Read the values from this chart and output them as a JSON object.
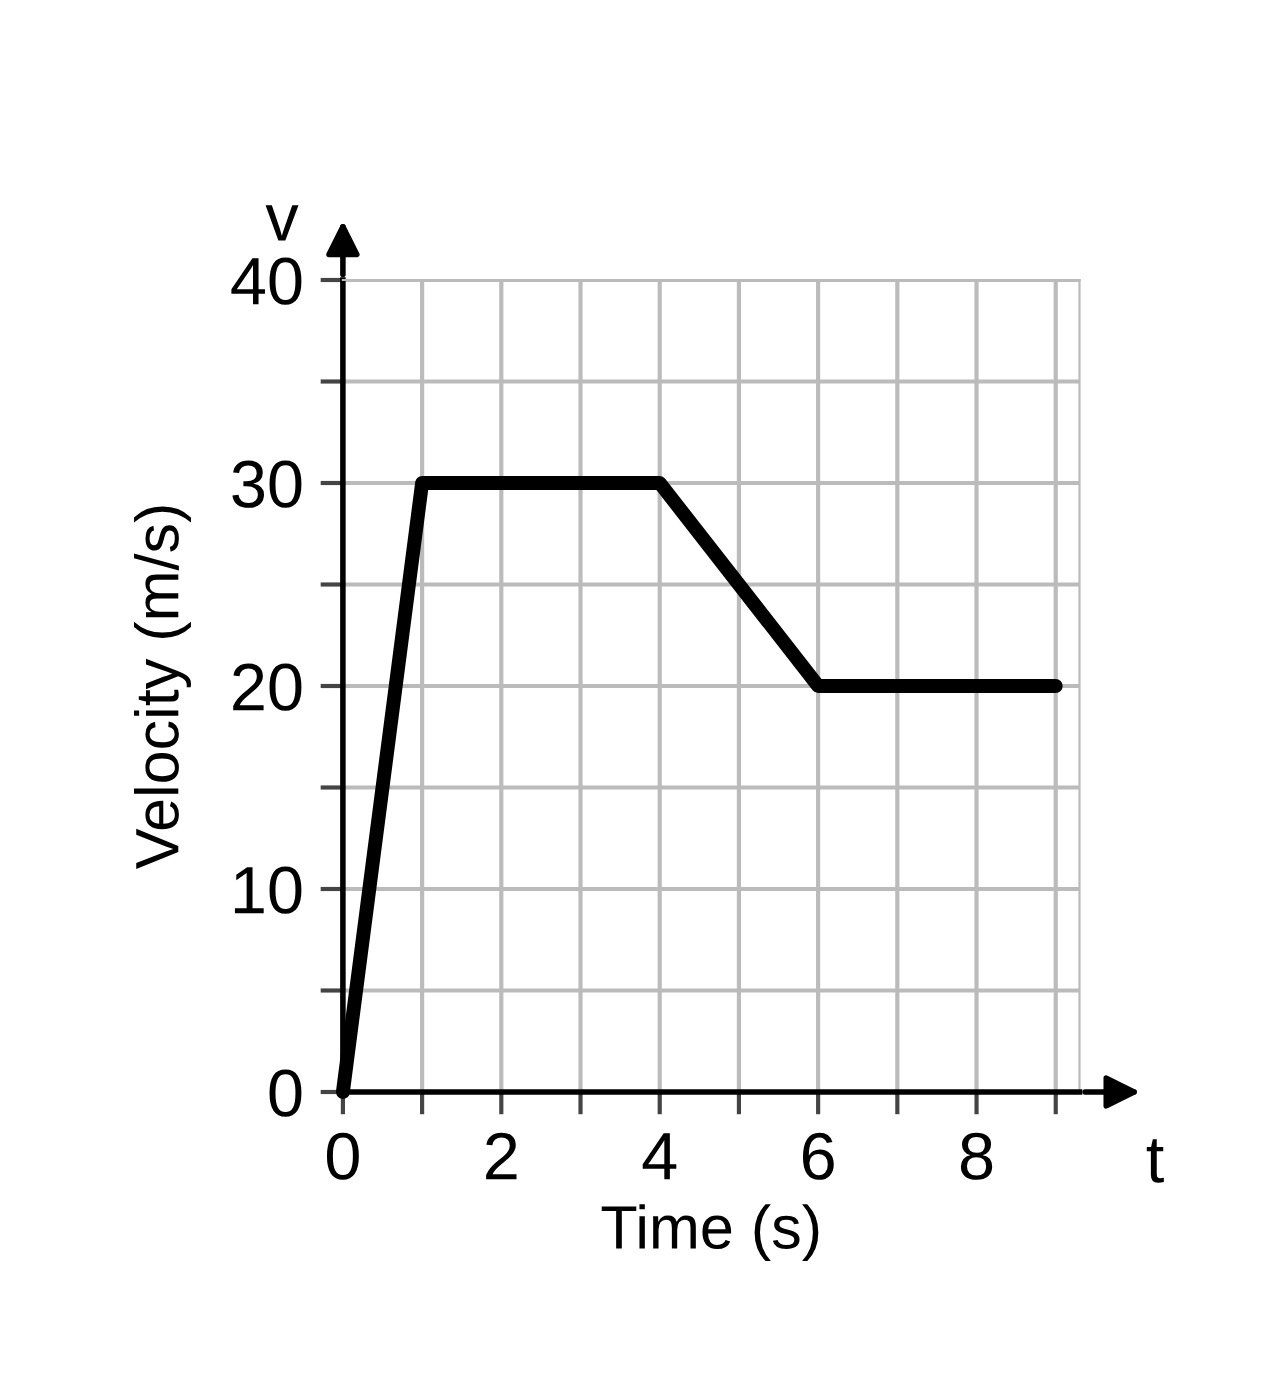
{
  "chart_data": {
    "type": "line",
    "xlabel": "Time (s)",
    "ylabel": "Velocity (m/s)",
    "x": [
      0,
      1,
      4,
      6,
      9
    ],
    "series": [
      {
        "color": "#000000",
        "values": [
          0,
          30,
          30,
          20,
          20
        ]
      }
    ],
    "xlim": [
      0,
      9.3
    ],
    "ylim": [
      0,
      40
    ],
    "xticks": [
      0,
      {
        "value": 1,
        "label": null
      },
      2,
      {
        "value": 3,
        "label": null
      },
      4,
      {
        "value": 5,
        "label": null
      },
      6,
      {
        "value": 7,
        "label": null
      },
      8,
      {
        "value": 9,
        "label": null
      }
    ],
    "yticks": [
      0,
      {
        "value": 5,
        "label": null
      },
      10,
      {
        "value": 15,
        "label": null
      },
      20,
      {
        "value": 25,
        "label": null
      },
      30,
      {
        "value": 35,
        "label": null
      },
      40
    ],
    "grid": true,
    "marker": "none",
    "line_style": "solid",
    "annotations": [
      "v",
      "t"
    ]
  }
}
